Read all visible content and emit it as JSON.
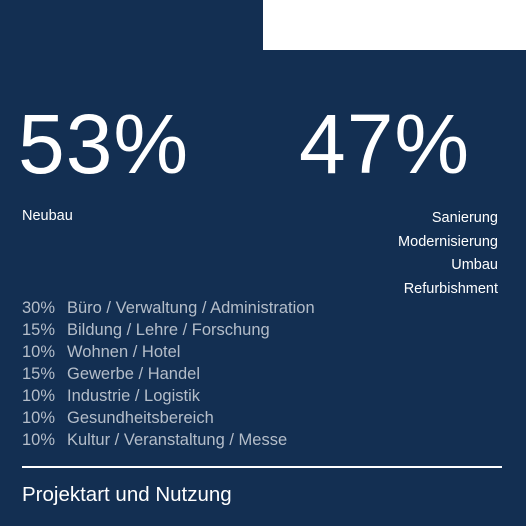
{
  "stats": {
    "left": {
      "value": "53%",
      "label": "Neubau"
    },
    "right": {
      "value": "47%",
      "labels": [
        "Sanierung",
        "Modernisierung",
        "Umbau",
        "Refurbishment"
      ]
    }
  },
  "usage": [
    {
      "percent": "30%",
      "label": "Büro / Verwaltung / Administration"
    },
    {
      "percent": "15%",
      "label": "Bildung / Lehre / Forschung"
    },
    {
      "percent": "10%",
      "label": "Wohnen / Hotel"
    },
    {
      "percent": "15%",
      "label": "Gewerbe / Handel"
    },
    {
      "percent": "10%",
      "label": "Industrie / Logistik"
    },
    {
      "percent": "10%",
      "label": "Gesundheitsbereich"
    },
    {
      "percent": "10%",
      "label": "Kultur / Veranstaltung / Messe"
    }
  ],
  "footer": {
    "title": "Projektart und Nutzung"
  },
  "colors": {
    "background": "#132f52",
    "primary_text": "#ffffff",
    "secondary_text": "#b4bdc9"
  }
}
